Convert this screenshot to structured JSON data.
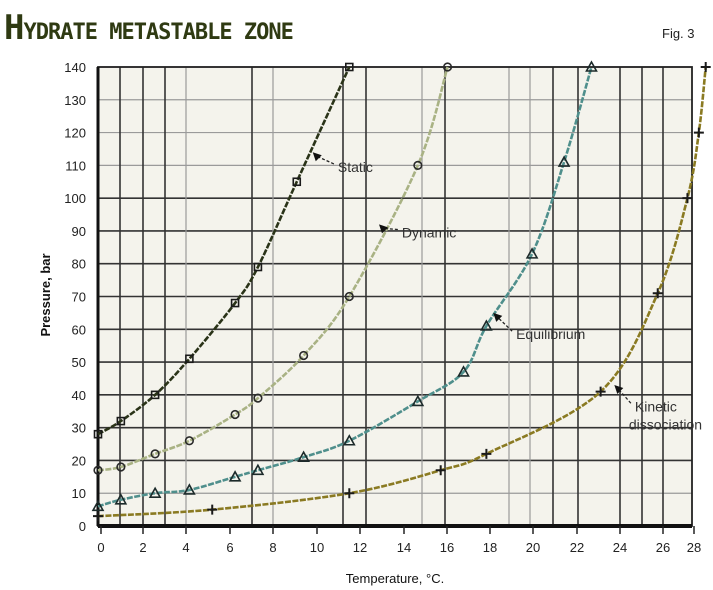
{
  "header": {
    "title_first": "H",
    "title_rest": "ydrate metastable zone",
    "fig_label": "Fig. 3"
  },
  "colors": {
    "background": "#ffffff",
    "plot_bg": "#f4f3ec",
    "grid": "#333333",
    "grid_light": "#9a9a9a",
    "static": "#2a3318",
    "dynamic": "#a9b284",
    "equilibrium": "#4f8f8c",
    "kinetic": "#8a7a22"
  },
  "chart_data": {
    "type": "line",
    "title": "Hydrate metastable zone",
    "xlabel": "Temperature, °C.",
    "ylabel": "Pressure, bar",
    "xlim": [
      0,
      26
    ],
    "ylim": [
      0,
      140
    ],
    "x_ticks": [
      "0",
      "2",
      "4",
      "6",
      "8",
      "10",
      "12",
      "14",
      "16",
      "18",
      "20",
      "22",
      "24",
      "26",
      "28"
    ],
    "y_ticks": [
      "0",
      "10",
      "20",
      "30",
      "40",
      "50",
      "60",
      "70",
      "80",
      "90",
      "100",
      "110",
      "120",
      "130",
      "140"
    ],
    "grid": true,
    "legend": "inline labels with arrows",
    "series": [
      {
        "name": "Static",
        "marker": "square",
        "points": [
          [
            0,
            28
          ],
          [
            1,
            32
          ],
          [
            2.5,
            40
          ],
          [
            4,
            51
          ],
          [
            6,
            68
          ],
          [
            7,
            79
          ],
          [
            8.7,
            105
          ],
          [
            11,
            140
          ]
        ],
        "label_pos": [
          10.5,
          108
        ],
        "arrow_to": [
          9.4,
          114
        ]
      },
      {
        "name": "Dynamic",
        "marker": "diamond",
        "points": [
          [
            0,
            17
          ],
          [
            1,
            18
          ],
          [
            2.5,
            22
          ],
          [
            4,
            26
          ],
          [
            6,
            34
          ],
          [
            7,
            39
          ],
          [
            9,
            52
          ],
          [
            11,
            70
          ],
          [
            14,
            110
          ],
          [
            15.3,
            140
          ]
        ],
        "label_pos": [
          13.3,
          88
        ],
        "arrow_to": [
          12.3,
          92
        ]
      },
      {
        "name": "Equilibrium",
        "marker": "triangle",
        "points": [
          [
            0,
            6
          ],
          [
            1,
            8
          ],
          [
            2.5,
            10
          ],
          [
            4,
            11
          ],
          [
            6,
            15
          ],
          [
            7,
            17
          ],
          [
            9,
            21
          ],
          [
            11,
            26
          ],
          [
            14,
            38
          ],
          [
            16,
            47
          ],
          [
            17,
            61
          ],
          [
            19,
            83
          ],
          [
            20.4,
            111
          ],
          [
            21.6,
            140
          ]
        ],
        "label_pos": [
          18.3,
          57
        ],
        "arrow_to": [
          17.3,
          65
        ]
      },
      {
        "name": "Kinetic dissociation",
        "marker": "plus",
        "points": [
          [
            0,
            3
          ],
          [
            5,
            5
          ],
          [
            11,
            10
          ],
          [
            15,
            17
          ],
          [
            17,
            22
          ],
          [
            22,
            41
          ],
          [
            24.5,
            71
          ],
          [
            25.8,
            100
          ],
          [
            26.3,
            120
          ],
          [
            26.6,
            140
          ]
        ],
        "label_pos": [
          23.5,
          35
        ],
        "arrow_to": [
          22.6,
          43
        ]
      }
    ]
  }
}
